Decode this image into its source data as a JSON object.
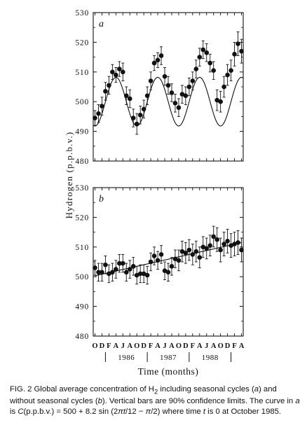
{
  "figure": {
    "ylabel": "Hydrogen (p.p.b.v.)",
    "xlabel": "Time (months)",
    "month_ticks": [
      "O",
      "D",
      "F",
      "A",
      "J",
      "A",
      "O",
      "D",
      "F",
      "A",
      "J",
      "A",
      "O",
      "D",
      "F",
      "A",
      "J",
      "A",
      "O",
      "D",
      "F",
      "A"
    ],
    "year_labels": [
      "1986",
      "1987",
      "1988"
    ]
  },
  "caption": {
    "p1": "FIG. 2 Global average concentration of H",
    "p1_sub": "2",
    "p2": " including seasonal cycles (",
    "p3": "a",
    "p4": ") and without seasonal cycles (",
    "p5": "b",
    "p6": "). Vertical bars are 90% confidence limits. The curve in ",
    "p7": "a",
    "p8": " is ",
    "p9": "C",
    "p10": "(p.p.b.v.) = 500 + 8.2 sin (2",
    "p11": "πt",
    "p12": "/12 − ",
    "p13": "π",
    "p14": "/2) where time ",
    "p15": "t",
    "p16": " is 0 at October 1985."
  },
  "chart_data": [
    {
      "type": "scatter",
      "panel_label": "a",
      "ylim": [
        480,
        530
      ],
      "yticks": [
        480,
        490,
        500,
        510,
        520,
        530
      ],
      "xlim": [
        -0.5,
        42.5
      ],
      "series": [
        {
          "points": [
            {
              "x": 0,
              "y": 494.5,
              "e": 2.5
            },
            {
              "x": 1,
              "y": 496,
              "e": 3
            },
            {
              "x": 2,
              "y": 498.5,
              "e": 3
            },
            {
              "x": 3,
              "y": 503.5,
              "e": 3
            },
            {
              "x": 4,
              "y": 505.5,
              "e": 3
            },
            {
              "x": 5,
              "y": 510,
              "e": 2.5
            },
            {
              "x": 6,
              "y": 509,
              "e": 2.5
            },
            {
              "x": 7,
              "y": 511,
              "e": 2.5
            },
            {
              "x": 8,
              "y": 510,
              "e": 3
            },
            {
              "x": 9,
              "y": 502,
              "e": 3
            },
            {
              "x": 10,
              "y": 501,
              "e": 3
            },
            {
              "x": 11,
              "y": 494.5,
              "e": 3
            },
            {
              "x": 12,
              "y": 492.5,
              "e": 3.5
            },
            {
              "x": 13,
              "y": 495.5,
              "e": 3
            },
            {
              "x": 14,
              "y": 497.5,
              "e": 3
            },
            {
              "x": 15,
              "y": 502,
              "e": 3
            },
            {
              "x": 16,
              "y": 507,
              "e": 3
            },
            {
              "x": 17,
              "y": 513,
              "e": 2.5
            },
            {
              "x": 18,
              "y": 514,
              "e": 2.5
            },
            {
              "x": 19,
              "y": 515.5,
              "e": 3
            },
            {
              "x": 20,
              "y": 508.5,
              "e": 3
            },
            {
              "x": 21,
              "y": 505.5,
              "e": 3
            },
            {
              "x": 22,
              "y": 503,
              "e": 3
            },
            {
              "x": 23,
              "y": 499.5,
              "e": 3
            },
            {
              "x": 24,
              "y": 498,
              "e": 3
            },
            {
              "x": 25,
              "y": 502.5,
              "e": 3
            },
            {
              "x": 26,
              "y": 502,
              "e": 3
            },
            {
              "x": 27,
              "y": 505,
              "e": 3
            },
            {
              "x": 28,
              "y": 507,
              "e": 3
            },
            {
              "x": 29,
              "y": 511,
              "e": 3
            },
            {
              "x": 30,
              "y": 515,
              "e": 3
            },
            {
              "x": 31,
              "y": 517.5,
              "e": 3
            },
            {
              "x": 32,
              "y": 516.5,
              "e": 3
            },
            {
              "x": 33,
              "y": 513,
              "e": 3
            },
            {
              "x": 34,
              "y": 510.5,
              "e": 3
            },
            {
              "x": 35,
              "y": 500.5,
              "e": 3.5
            },
            {
              "x": 36,
              "y": 500,
              "e": 3.5
            },
            {
              "x": 37,
              "y": 505,
              "e": 3.5
            },
            {
              "x": 38,
              "y": 509,
              "e": 3.5
            },
            {
              "x": 39,
              "y": 510.5,
              "e": 3.5
            },
            {
              "x": 40,
              "y": 516,
              "e": 4
            },
            {
              "x": 41,
              "y": 519.5,
              "e": 4
            },
            {
              "x": 42,
              "y": 517,
              "e": 4
            }
          ]
        }
      ],
      "curve": {
        "formula": "500 + 8.2 sin(2πt/12 − π/2)",
        "offset": 500,
        "amplitude": 8.2,
        "period": 12,
        "phase_rad": -1.5708
      }
    },
    {
      "type": "scatter",
      "panel_label": "b",
      "ylim": [
        480,
        530
      ],
      "yticks": [
        480,
        490,
        500,
        510,
        520,
        530
      ],
      "xlim": [
        -0.5,
        42.5
      ],
      "series": [
        {
          "points": [
            {
              "x": 0,
              "y": 503,
              "e": 2.5
            },
            {
              "x": 1,
              "y": 501.5,
              "e": 3
            },
            {
              "x": 2,
              "y": 501.5,
              "e": 3
            },
            {
              "x": 3,
              "y": 504,
              "e": 3
            },
            {
              "x": 4,
              "y": 501,
              "e": 3
            },
            {
              "x": 5,
              "y": 501.5,
              "e": 3
            },
            {
              "x": 6,
              "y": 502.5,
              "e": 3
            },
            {
              "x": 7,
              "y": 504.5,
              "e": 3
            },
            {
              "x": 8,
              "y": 504.5,
              "e": 3
            },
            {
              "x": 9,
              "y": 501.5,
              "e": 3
            },
            {
              "x": 10,
              "y": 502.5,
              "e": 3
            },
            {
              "x": 11,
              "y": 503.5,
              "e": 3
            },
            {
              "x": 12,
              "y": 500.5,
              "e": 3
            },
            {
              "x": 13,
              "y": 501,
              "e": 3
            },
            {
              "x": 14,
              "y": 501,
              "e": 3
            },
            {
              "x": 15,
              "y": 500.5,
              "e": 3
            },
            {
              "x": 16,
              "y": 505,
              "e": 3
            },
            {
              "x": 17,
              "y": 507,
              "e": 3
            },
            {
              "x": 18,
              "y": 505.5,
              "e": 3
            },
            {
              "x": 19,
              "y": 507.5,
              "e": 3
            },
            {
              "x": 20,
              "y": 502,
              "e": 3
            },
            {
              "x": 21,
              "y": 501.5,
              "e": 3
            },
            {
              "x": 22,
              "y": 503.5,
              "e": 3
            },
            {
              "x": 23,
              "y": 506,
              "e": 3
            },
            {
              "x": 24,
              "y": 505.5,
              "e": 3.5
            },
            {
              "x": 25,
              "y": 508.5,
              "e": 3.5
            },
            {
              "x": 26,
              "y": 508,
              "e": 3.5
            },
            {
              "x": 27,
              "y": 509,
              "e": 3.5
            },
            {
              "x": 28,
              "y": 507.5,
              "e": 3.5
            },
            {
              "x": 29,
              "y": 508.5,
              "e": 3.5
            },
            {
              "x": 30,
              "y": 506.5,
              "e": 3.5
            },
            {
              "x": 31,
              "y": 510,
              "e": 3.5
            },
            {
              "x": 32,
              "y": 509.5,
              "e": 3.5
            },
            {
              "x": 33,
              "y": 510.5,
              "e": 3.5
            },
            {
              "x": 34,
              "y": 513.5,
              "e": 3.5
            },
            {
              "x": 35,
              "y": 512.5,
              "e": 4
            },
            {
              "x": 36,
              "y": 509,
              "e": 4
            },
            {
              "x": 37,
              "y": 511,
              "e": 4
            },
            {
              "x": 38,
              "y": 512,
              "e": 4
            },
            {
              "x": 39,
              "y": 510.5,
              "e": 4
            },
            {
              "x": 40,
              "y": 511,
              "e": 4
            },
            {
              "x": 41,
              "y": 511.5,
              "e": 4
            },
            {
              "x": 42,
              "y": 509,
              "e": 4
            }
          ]
        }
      ],
      "trend": {
        "x": [
          0,
          42
        ],
        "y": [
          500.3,
          511.5
        ]
      }
    }
  ]
}
